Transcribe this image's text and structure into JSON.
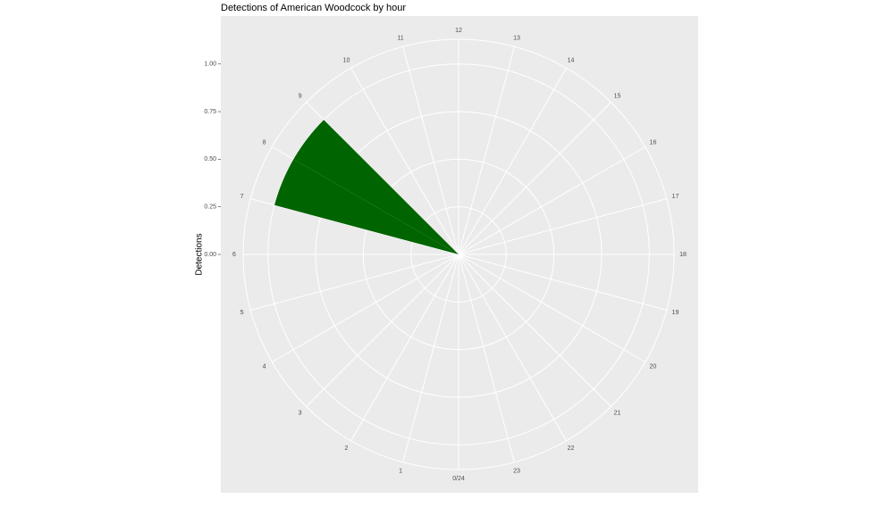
{
  "chart_data": {
    "type": "polar-bar",
    "title": "Detections of American Woodcock by hour",
    "y_label": "Detections",
    "x": [
      7,
      8
    ],
    "values": [
      1,
      1
    ],
    "color": "#006400",
    "xlim": [
      0,
      24
    ],
    "xticks": [
      {
        "value": 0,
        "label": "0/24"
      },
      1,
      2,
      3,
      4,
      5,
      6,
      7,
      8,
      9,
      10,
      11,
      12,
      13,
      14,
      15,
      16,
      17,
      18,
      19,
      20,
      21,
      22,
      23
    ],
    "ylim": [
      0,
      1.13
    ],
    "yticks": [
      {
        "value": 0,
        "label": "0.00"
      },
      0.25,
      {
        "value": 0.5,
        "label": "0.50"
      },
      0.75,
      {
        "value": 1,
        "label": "1.00"
      }
    ],
    "grid": true
  }
}
